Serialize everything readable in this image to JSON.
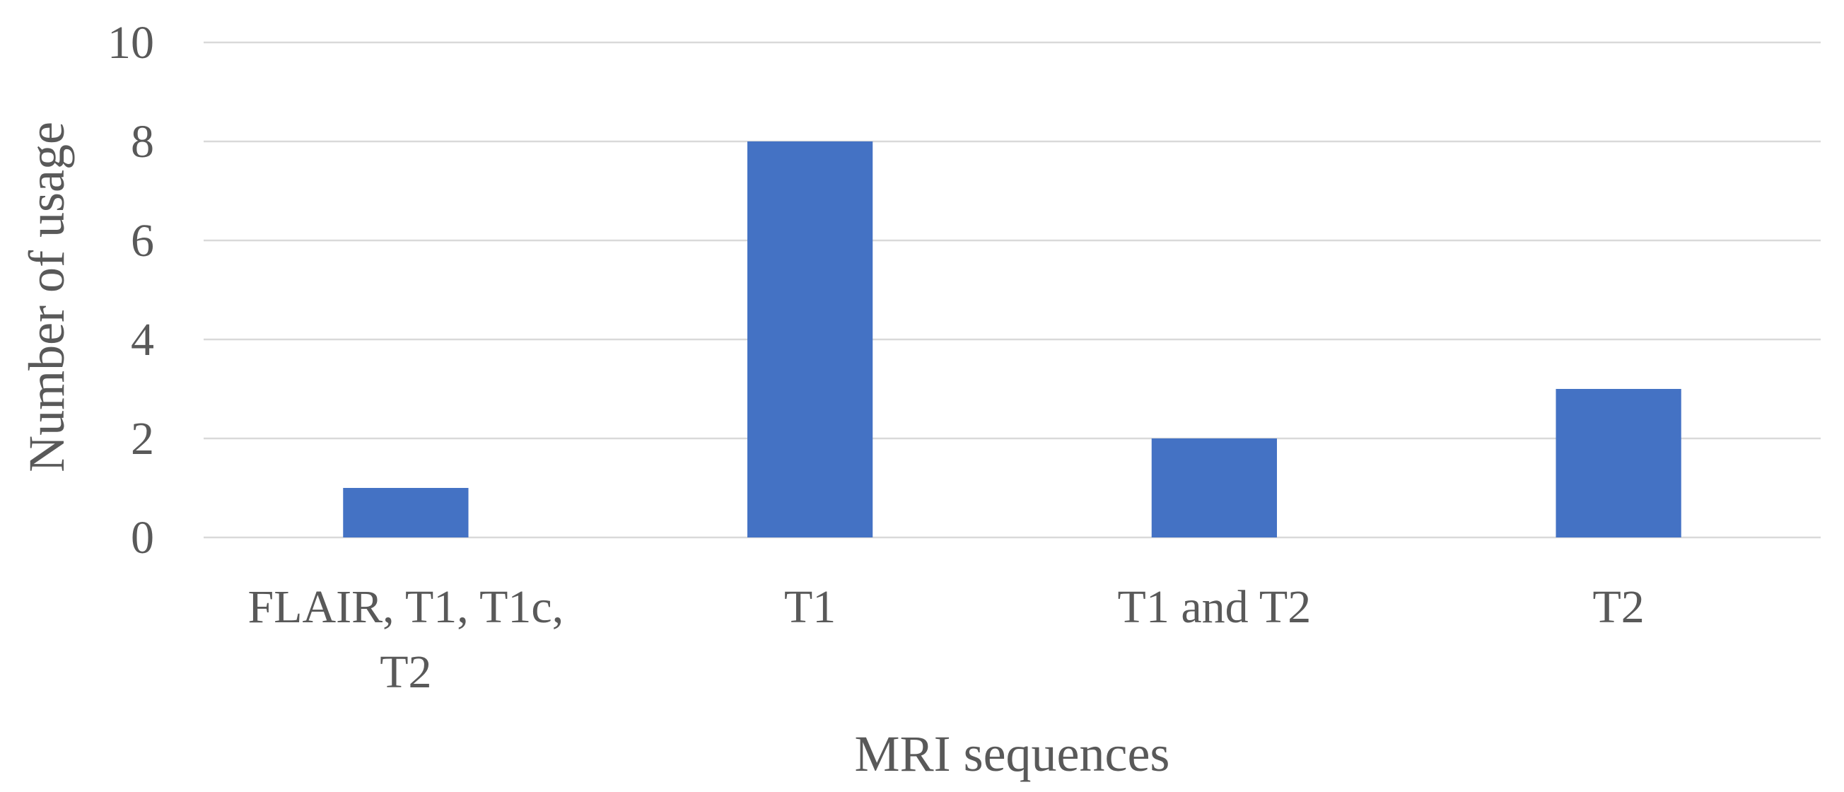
{
  "chart_data": {
    "type": "bar",
    "categories": [
      [
        "FLAIR, T1, T1c,",
        "T2"
      ],
      [
        "T1"
      ],
      [
        "T1 and T2"
      ],
      [
        "T2"
      ]
    ],
    "values": [
      1,
      8,
      2,
      3
    ],
    "xlabel": "MRI sequences",
    "ylabel": "Number of usage",
    "ylim": [
      0,
      10
    ],
    "yticks": [
      0,
      2,
      4,
      6,
      8,
      10
    ],
    "grid": true,
    "legend": "none",
    "colors": {
      "bar": "#4472C4",
      "grid": "#d9d9d9",
      "text": "#595959"
    }
  }
}
